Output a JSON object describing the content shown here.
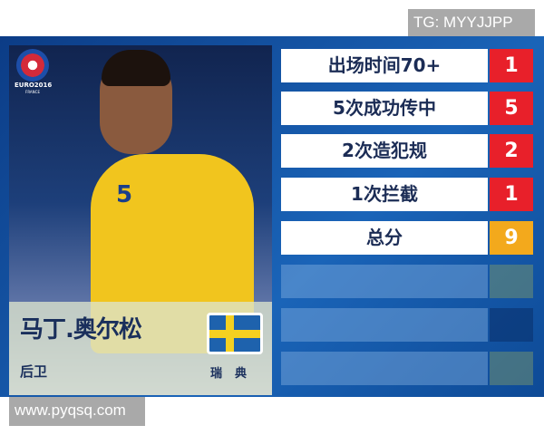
{
  "watermarks": {
    "top": "TG: MYYJJPP",
    "bottom": "www.pyqsq.com"
  },
  "logo": {
    "title": "EURO2016",
    "subtitle": "FRANCE"
  },
  "player": {
    "name": "马丁.奥尔松",
    "position": "后卫",
    "country": "瑞典",
    "shirt_number": "5"
  },
  "stats": [
    {
      "label": "出场时间70+",
      "value": "1"
    },
    {
      "label": "5次成功传中",
      "value": "5"
    },
    {
      "label": "2次造犯规",
      "value": "2"
    },
    {
      "label": "1次拦截",
      "value": "1"
    }
  ],
  "total": {
    "label": "总分",
    "value": "9"
  },
  "colors": {
    "points": "#e8202a",
    "total": "#f3a91c",
    "panel": "#1a64b8"
  }
}
